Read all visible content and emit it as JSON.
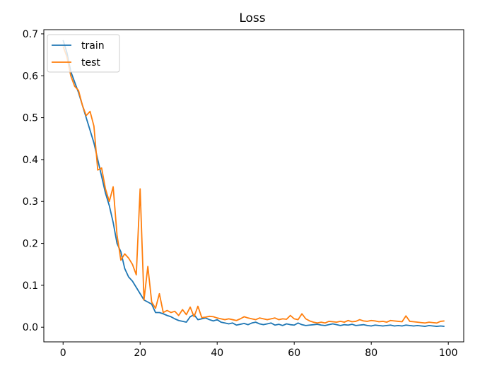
{
  "chart_data": {
    "type": "line",
    "title": "Loss",
    "xlabel": "",
    "ylabel": "",
    "xlim": [
      -5,
      104
    ],
    "ylim": [
      -0.035,
      0.71
    ],
    "xticks": [
      0,
      20,
      40,
      60,
      80,
      100
    ],
    "yticks": [
      0.0,
      0.1,
      0.2,
      0.3,
      0.4,
      0.5,
      0.6,
      0.7
    ],
    "xtick_labels": [
      "0",
      "20",
      "40",
      "60",
      "80",
      "100"
    ],
    "ytick_labels": [
      "0.0",
      "0.1",
      "0.2",
      "0.3",
      "0.4",
      "0.5",
      "0.6",
      "0.7"
    ],
    "grid": false,
    "legend_position": "top-left",
    "x": [
      0,
      1,
      2,
      3,
      4,
      5,
      6,
      7,
      8,
      9,
      10,
      11,
      12,
      13,
      14,
      15,
      16,
      17,
      18,
      19,
      20,
      21,
      22,
      23,
      24,
      25,
      26,
      27,
      28,
      29,
      30,
      31,
      32,
      33,
      34,
      35,
      36,
      37,
      38,
      39,
      40,
      41,
      42,
      43,
      44,
      45,
      46,
      47,
      48,
      49,
      50,
      51,
      52,
      53,
      54,
      55,
      56,
      57,
      58,
      59,
      60,
      61,
      62,
      63,
      64,
      65,
      66,
      67,
      68,
      69,
      70,
      71,
      72,
      73,
      74,
      75,
      76,
      77,
      78,
      79,
      80,
      81,
      82,
      83,
      84,
      85,
      86,
      87,
      88,
      89,
      90,
      91,
      92,
      93,
      94,
      95,
      96,
      97,
      98,
      99
    ],
    "series": [
      {
        "name": "train",
        "color": "#1f77b4",
        "values": [
          0.685,
          0.655,
          0.61,
          0.585,
          0.56,
          0.53,
          0.5,
          0.47,
          0.44,
          0.4,
          0.36,
          0.32,
          0.29,
          0.25,
          0.2,
          0.18,
          0.14,
          0.12,
          0.11,
          0.095,
          0.08,
          0.065,
          0.06,
          0.055,
          0.035,
          0.035,
          0.032,
          0.028,
          0.025,
          0.02,
          0.016,
          0.014,
          0.012,
          0.025,
          0.03,
          0.018,
          0.02,
          0.022,
          0.018,
          0.015,
          0.018,
          0.012,
          0.01,
          0.008,
          0.01,
          0.005,
          0.007,
          0.009,
          0.006,
          0.01,
          0.012,
          0.008,
          0.006,
          0.008,
          0.01,
          0.005,
          0.007,
          0.004,
          0.008,
          0.006,
          0.005,
          0.01,
          0.006,
          0.004,
          0.005,
          0.006,
          0.007,
          0.005,
          0.004,
          0.006,
          0.008,
          0.006,
          0.004,
          0.006,
          0.005,
          0.007,
          0.004,
          0.005,
          0.006,
          0.004,
          0.003,
          0.005,
          0.004,
          0.003,
          0.004,
          0.005,
          0.003,
          0.004,
          0.003,
          0.005,
          0.004,
          0.003,
          0.004,
          0.003,
          0.002,
          0.004,
          0.003,
          0.002,
          0.003,
          0.002
        ]
      },
      {
        "name": "test",
        "color": "#ff7f0e",
        "values": [
          0.67,
          0.645,
          0.6,
          0.575,
          0.565,
          0.53,
          0.505,
          0.515,
          0.48,
          0.375,
          0.38,
          0.33,
          0.3,
          0.335,
          0.22,
          0.16,
          0.175,
          0.165,
          0.15,
          0.125,
          0.33,
          0.065,
          0.145,
          0.06,
          0.045,
          0.08,
          0.035,
          0.04,
          0.035,
          0.038,
          0.028,
          0.042,
          0.03,
          0.048,
          0.025,
          0.05,
          0.023,
          0.024,
          0.026,
          0.025,
          0.022,
          0.02,
          0.018,
          0.02,
          0.018,
          0.016,
          0.02,
          0.025,
          0.022,
          0.02,
          0.018,
          0.022,
          0.02,
          0.018,
          0.02,
          0.022,
          0.018,
          0.02,
          0.019,
          0.028,
          0.02,
          0.018,
          0.032,
          0.02,
          0.015,
          0.012,
          0.01,
          0.012,
          0.01,
          0.014,
          0.013,
          0.012,
          0.014,
          0.012,
          0.016,
          0.013,
          0.014,
          0.018,
          0.015,
          0.014,
          0.016,
          0.015,
          0.013,
          0.014,
          0.012,
          0.016,
          0.015,
          0.014,
          0.013,
          0.027,
          0.014,
          0.013,
          0.012,
          0.011,
          0.01,
          0.012,
          0.011,
          0.01,
          0.014,
          0.015
        ]
      }
    ]
  }
}
